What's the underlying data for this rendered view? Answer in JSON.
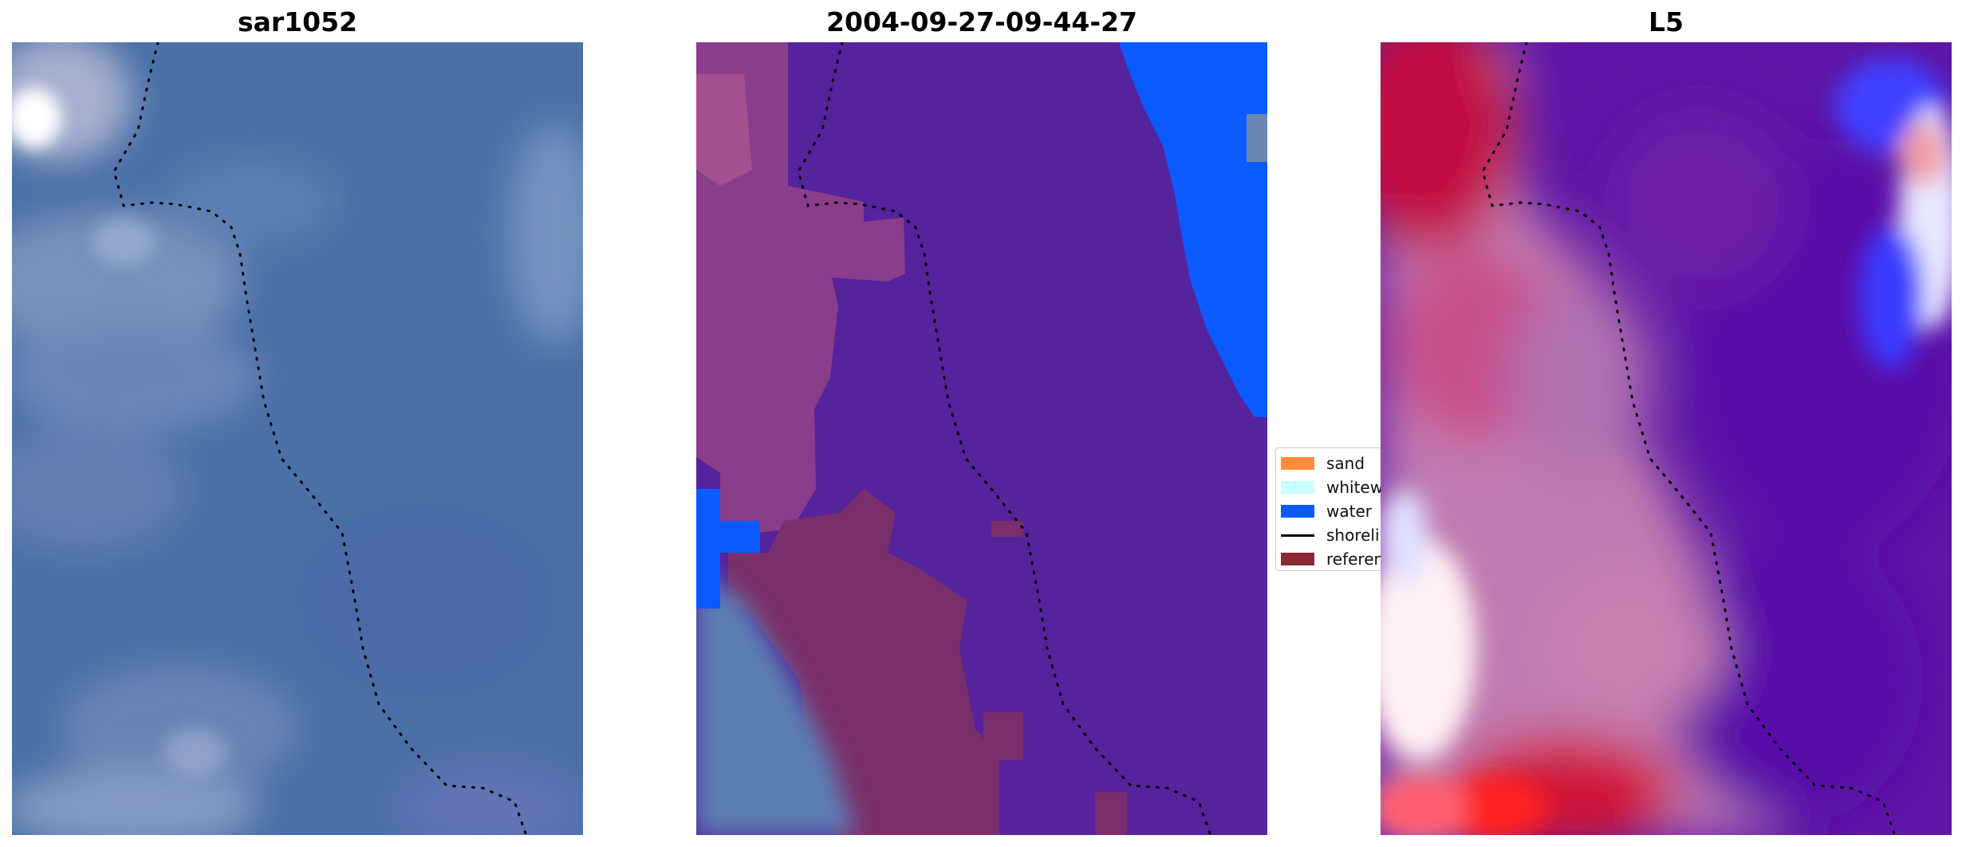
{
  "panels": [
    {
      "title": "sar1052"
    },
    {
      "title": "2004-09-27-09-44-27"
    },
    {
      "title": "L5"
    }
  ],
  "legend": {
    "items": [
      {
        "label": "sand",
        "color": "#ff8c3c",
        "kind": "patch"
      },
      {
        "label": "whitewater",
        "color": "#c8ffff",
        "kind": "patch"
      },
      {
        "label": "water",
        "color": "#0a5aff",
        "kind": "patch"
      },
      {
        "label": "shoreline",
        "color": "#000000",
        "kind": "line"
      },
      {
        "label": "reference",
        "color": "#8c2832",
        "kind": "patch"
      }
    ]
  },
  "colors": {
    "rgb_base": "#4a6fa5",
    "class_land": "#55239b",
    "class_water": "#0a5aff",
    "class_reference": "#7a2e6b",
    "index_low": "#ff1010",
    "index_mid": "#c080b0",
    "index_high": "#5a12a8",
    "shoreline": "#000000"
  }
}
